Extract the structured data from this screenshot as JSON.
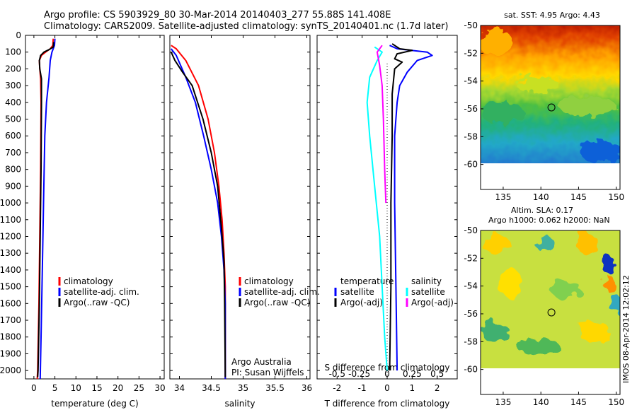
{
  "header": {
    "line1": "Argo profile: CS 5903929_80 30-Mar-2014 20140403_277 55.88S 141.408E",
    "line2": "Climatology: CARS2009. Satellite-adjusted climatology: synTS_20140401.nc (1.7d later)"
  },
  "side_label": "IMOS 08-Apr-2014 12:02:12",
  "colors": {
    "climatology": "#ff0000",
    "satellite": "#0000ff",
    "argo": "#000000",
    "sal_satellite": "#00ffff",
    "sal_argo": "#ff00ff"
  },
  "chart_data": [
    {
      "type": "line",
      "id": "temperature",
      "xlabel": "temperature (deg C)",
      "xticks": [
        0,
        5,
        10,
        15,
        20,
        25,
        30
      ],
      "xlim": [
        -2,
        31
      ],
      "ylim": [
        0,
        2050
      ],
      "yticks": [
        0,
        100,
        200,
        300,
        400,
        500,
        600,
        700,
        800,
        900,
        1000,
        1100,
        1200,
        1300,
        1400,
        1500,
        1600,
        1700,
        1800,
        1900,
        2000
      ],
      "y_reversed": true,
      "legend": [
        "climatology",
        "satellite-adj. clim.",
        "Argo(..raw -QC)"
      ],
      "series": [
        {
          "name": "climatology",
          "color": "#ff0000",
          "points": [
            [
              4.6,
              20
            ],
            [
              4.5,
              60
            ],
            [
              3.9,
              80
            ],
            [
              2.8,
              100
            ],
            [
              1.8,
              120
            ],
            [
              1.3,
              150
            ],
            [
              1.4,
              200
            ],
            [
              1.6,
              260
            ],
            [
              1.7,
              400
            ],
            [
              1.6,
              800
            ],
            [
              1.4,
              1200
            ],
            [
              1.2,
              1600
            ],
            [
              0.9,
              2000
            ],
            [
              0.8,
              2050
            ]
          ]
        },
        {
          "name": "satellite-adj. clim.",
          "color": "#0000ff",
          "points": [
            [
              5.0,
              20
            ],
            [
              4.9,
              60
            ],
            [
              4.6,
              80
            ],
            [
              4.3,
              100
            ],
            [
              3.9,
              150
            ],
            [
              3.6,
              250
            ],
            [
              3.0,
              400
            ],
            [
              2.6,
              600
            ],
            [
              2.3,
              1000
            ],
            [
              2.0,
              1400
            ],
            [
              1.7,
              1800
            ],
            [
              1.5,
              2050
            ]
          ]
        },
        {
          "name": "Argo(..raw -QC)",
          "color": "#000000",
          "points": [
            [
              4.7,
              40
            ],
            [
              4.6,
              70
            ],
            [
              3.6,
              85
            ],
            [
              2.4,
              100
            ],
            [
              1.6,
              120
            ],
            [
              1.3,
              150
            ],
            [
              1.4,
              200
            ],
            [
              1.8,
              260
            ],
            [
              1.8,
              400
            ],
            [
              1.7,
              800
            ],
            [
              1.5,
              1200
            ],
            [
              1.3,
              1600
            ],
            [
              1.0,
              2000
            ],
            [
              0.9,
              2040
            ]
          ]
        }
      ]
    },
    {
      "type": "line",
      "id": "salinity",
      "xlabel": "salinity",
      "xticks": [
        34,
        34.5,
        35,
        35.5,
        36
      ],
      "xtick_labels": [
        "34",
        "34.5",
        "35",
        "35.5",
        "36"
      ],
      "xlim": [
        33.85,
        36.05
      ],
      "ylim": [
        0,
        2050
      ],
      "y_reversed": true,
      "legend": [
        "climatology",
        "satellite-adj. clim.",
        "Argo(..raw -QC)"
      ],
      "annotations": [
        "Argo Australia",
        "PI: Susan Wijffels"
      ],
      "series": [
        {
          "name": "climatology",
          "color": "#ff0000",
          "points": [
            [
              33.87,
              60
            ],
            [
              33.95,
              80
            ],
            [
              34.1,
              150
            ],
            [
              34.3,
              300
            ],
            [
              34.45,
              500
            ],
            [
              34.55,
              700
            ],
            [
              34.62,
              900
            ],
            [
              34.67,
              1100
            ],
            [
              34.7,
              1300
            ],
            [
              34.72,
              1500
            ],
            [
              34.72,
              1800
            ],
            [
              34.72,
              2050
            ]
          ]
        },
        {
          "name": "satellite-adj. clim.",
          "color": "#0000ff",
          "points": [
            [
              33.87,
              80
            ],
            [
              33.95,
              120
            ],
            [
              34.1,
              250
            ],
            [
              34.25,
              400
            ],
            [
              34.38,
              600
            ],
            [
              34.5,
              800
            ],
            [
              34.6,
              1000
            ],
            [
              34.66,
              1200
            ],
            [
              34.7,
              1400
            ],
            [
              34.72,
              1600
            ],
            [
              34.72,
              2050
            ]
          ]
        },
        {
          "name": "Argo(..raw -QC)",
          "color": "#000000",
          "points": [
            [
              33.87,
              100
            ],
            [
              33.93,
              150
            ],
            [
              34.05,
              220
            ],
            [
              34.2,
              300
            ],
            [
              34.37,
              500
            ],
            [
              34.5,
              700
            ],
            [
              34.6,
              900
            ],
            [
              34.66,
              1150
            ],
            [
              34.7,
              1350
            ],
            [
              34.71,
              1600
            ],
            [
              34.72,
              2040
            ]
          ]
        }
      ]
    },
    {
      "type": "line",
      "id": "differences",
      "xlabel": "T difference from climatology",
      "xlabel_top": "S difference from climatology",
      "xticks": [
        -2,
        -1,
        0,
        1,
        2
      ],
      "xlim": [
        -2.8,
        2.8
      ],
      "s_xtick_labels": [
        "-0.5",
        "-0.25",
        "0",
        "0.25",
        "0.5"
      ],
      "ylim": [
        0,
        2050
      ],
      "y_reversed": true,
      "legend_left_title": "temperature",
      "legend_right_title": "salinity",
      "legend": [
        "satellite",
        "Argo(-adj)",
        "satellite",
        "Argo(-adj)"
      ],
      "series": [
        {
          "name": "satellite",
          "color": "#0000ff",
          "points": [
            [
              0.1,
              60
            ],
            [
              0.4,
              80
            ],
            [
              1.6,
              100
            ],
            [
              1.8,
              120
            ],
            [
              1.2,
              150
            ],
            [
              0.8,
              220
            ],
            [
              0.5,
              300
            ],
            [
              0.4,
              400
            ],
            [
              0.3,
              600
            ],
            [
              0.3,
              1000
            ],
            [
              0.35,
              1500
            ],
            [
              0.4,
              2000
            ]
          ]
        },
        {
          "name": "Argo(-adj)",
          "color": "#000000",
          "points": [
            [
              0.2,
              50
            ],
            [
              0.5,
              80
            ],
            [
              1.0,
              90
            ],
            [
              0.4,
              110
            ],
            [
              0.3,
              140
            ],
            [
              0.6,
              160
            ],
            [
              0.3,
              200
            ],
            [
              0.2,
              350
            ],
            [
              0.2,
              600
            ],
            [
              0.15,
              1000
            ],
            [
              0.15,
              1500
            ],
            [
              0.1,
              2000
            ]
          ]
        },
        {
          "name": "satellite",
          "color": "#00ffff",
          "points": [
            [
              -0.5,
              70
            ],
            [
              -0.2,
              100
            ],
            [
              -0.4,
              150
            ],
            [
              -0.7,
              250
            ],
            [
              -0.8,
              400
            ],
            [
              -0.7,
              600
            ],
            [
              -0.5,
              900
            ],
            [
              -0.3,
              1200
            ],
            [
              -0.2,
              1500
            ],
            [
              -0.1,
              1800
            ],
            [
              0.0,
              2000
            ]
          ]
        },
        {
          "name": "Argo(-adj)",
          "color": "#ff00ff",
          "points": [
            [
              -0.2,
              60
            ],
            [
              -0.4,
              100
            ],
            [
              -0.3,
              180
            ],
            [
              -0.2,
              300
            ],
            [
              -0.15,
              500
            ],
            [
              -0.1,
              800
            ],
            [
              -0.05,
              1000
            ]
          ]
        }
      ]
    },
    {
      "type": "heatmap",
      "id": "sst-map",
      "title": "sat. SST: 4.95 Argo: 4.43",
      "xticks": [
        135,
        140,
        145,
        150
      ],
      "yticks": [
        -50,
        -52,
        -54,
        -56,
        -58,
        -60
      ],
      "xlim": [
        132,
        150.5
      ],
      "ylim": [
        -61.8,
        -50
      ],
      "marker": {
        "lon": 141.4,
        "lat": -55.9
      }
    },
    {
      "type": "heatmap",
      "id": "sla-map",
      "title": "Altim. SLA: 0.17",
      "subtitle": "Argo h1000: 0.062 h2000: NaN",
      "xticks": [
        135,
        140,
        145,
        150
      ],
      "yticks": [
        -50,
        -52,
        -54,
        -56,
        -58,
        -60
      ],
      "xlim": [
        132,
        150.5
      ],
      "ylim": [
        -61.8,
        -50
      ],
      "marker": {
        "lon": 141.4,
        "lat": -55.9
      }
    }
  ]
}
